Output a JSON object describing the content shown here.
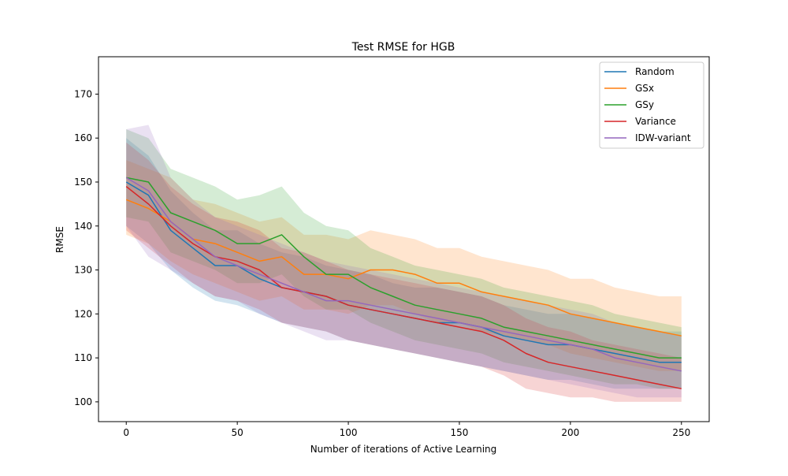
{
  "chart_data": {
    "type": "line",
    "title": "Test RMSE for HGB",
    "xlabel": "Number of iterations of Active Learning",
    "ylabel": "RMSE",
    "xlim": [
      -12.5,
      262.5
    ],
    "ylim": [
      95.5,
      178.5
    ],
    "xticks": [
      0,
      50,
      100,
      150,
      200,
      250
    ],
    "yticks": [
      100,
      110,
      120,
      130,
      140,
      150,
      160,
      170
    ],
    "grid": false,
    "legend": "top-right",
    "band": "shaded min-max range around each series",
    "series": [
      {
        "name": "Random",
        "color": "#1f77b4",
        "x": [
          0,
          10,
          20,
          30,
          40,
          50,
          60,
          70,
          80,
          90,
          100,
          110,
          120,
          130,
          140,
          150,
          160,
          170,
          180,
          190,
          200,
          210,
          220,
          230,
          240,
          250
        ],
        "y": [
          150,
          147,
          139,
          135,
          131,
          131,
          128,
          126,
          125,
          124,
          122,
          121,
          120,
          119,
          118,
          118,
          117,
          115,
          114,
          113,
          113,
          112,
          111,
          110,
          109,
          109
        ],
        "lower": [
          140,
          136,
          130,
          126,
          123,
          122,
          120,
          118,
          117,
          116,
          114,
          113,
          112,
          111,
          110,
          109,
          108,
          107,
          106,
          105,
          105,
          104,
          103,
          103,
          103,
          103
        ],
        "upper": [
          160,
          156,
          148,
          143,
          139,
          139,
          136,
          134,
          133,
          131,
          130,
          129,
          127,
          126,
          126,
          125,
          124,
          122,
          121,
          120,
          120,
          119,
          118,
          117,
          116,
          116
        ]
      },
      {
        "name": "GSx",
        "color": "#ff7f0e",
        "x": [
          0,
          10,
          20,
          30,
          40,
          50,
          60,
          70,
          80,
          90,
          100,
          110,
          120,
          130,
          140,
          150,
          160,
          170,
          180,
          190,
          200,
          210,
          220,
          230,
          240,
          250
        ],
        "y": [
          146,
          144,
          141,
          137,
          136,
          134,
          132,
          133,
          129,
          129,
          128,
          130,
          130,
          129,
          127,
          127,
          125,
          124,
          123,
          122,
          120,
          119,
          118,
          117,
          116,
          115
        ],
        "lower": [
          138,
          136,
          132,
          129,
          127,
          125,
          123,
          124,
          121,
          121,
          120,
          122,
          122,
          120,
          118,
          118,
          116,
          115,
          114,
          113,
          111,
          110,
          109,
          108,
          107,
          107
        ],
        "upper": [
          155,
          153,
          151,
          146,
          145,
          143,
          141,
          142,
          138,
          138,
          137,
          139,
          138,
          137,
          135,
          135,
          133,
          132,
          131,
          130,
          128,
          128,
          126,
          125,
          124,
          124
        ]
      },
      {
        "name": "GSy",
        "color": "#2ca02c",
        "x": [
          0,
          10,
          20,
          30,
          40,
          50,
          60,
          70,
          80,
          90,
          100,
          110,
          120,
          130,
          140,
          150,
          160,
          170,
          180,
          190,
          200,
          210,
          220,
          230,
          240,
          250
        ],
        "y": [
          151,
          150,
          143,
          141,
          139,
          136,
          136,
          138,
          133,
          129,
          129,
          126,
          124,
          122,
          121,
          120,
          119,
          117,
          116,
          115,
          114,
          113,
          112,
          111,
          110,
          110
        ],
        "lower": [
          142,
          141,
          134,
          132,
          130,
          127,
          127,
          129,
          124,
          121,
          121,
          118,
          116,
          114,
          113,
          112,
          111,
          109,
          108,
          107,
          106,
          105,
          104,
          104,
          103,
          103
        ],
        "upper": [
          162,
          160,
          153,
          151,
          149,
          146,
          147,
          149,
          143,
          140,
          139,
          135,
          133,
          131,
          130,
          129,
          128,
          126,
          125,
          124,
          123,
          122,
          120,
          119,
          118,
          117
        ]
      },
      {
        "name": "Variance",
        "color": "#d62728",
        "x": [
          0,
          10,
          20,
          30,
          40,
          50,
          60,
          70,
          80,
          90,
          100,
          110,
          120,
          130,
          140,
          150,
          160,
          170,
          180,
          190,
          200,
          210,
          220,
          230,
          240,
          250
        ],
        "y": [
          149,
          145,
          140,
          136,
          133,
          132,
          130,
          126,
          125,
          124,
          122,
          121,
          120,
          119,
          118,
          117,
          116,
          114,
          111,
          109,
          108,
          107,
          106,
          105,
          104,
          103
        ],
        "lower": [
          139,
          135,
          131,
          127,
          124,
          123,
          121,
          118,
          117,
          116,
          114,
          113,
          112,
          111,
          110,
          109,
          108,
          106,
          103,
          102,
          101,
          101,
          100,
          100,
          100,
          100
        ],
        "upper": [
          159,
          155,
          149,
          145,
          142,
          141,
          139,
          135,
          134,
          132,
          130,
          129,
          128,
          127,
          126,
          125,
          124,
          122,
          119,
          117,
          116,
          114,
          113,
          112,
          111,
          110
        ]
      },
      {
        "name": "IDW-variant",
        "color": "#9467bd",
        "x": [
          0,
          10,
          20,
          30,
          40,
          50,
          60,
          70,
          80,
          90,
          100,
          110,
          120,
          130,
          140,
          150,
          160,
          170,
          180,
          190,
          200,
          210,
          220,
          230,
          240,
          250
        ],
        "y": [
          151,
          148,
          141,
          137,
          133,
          131,
          129,
          127,
          125,
          123,
          123,
          122,
          121,
          120,
          119,
          118,
          117,
          116,
          115,
          114,
          113,
          112,
          110,
          109,
          108,
          107
        ],
        "lower": [
          140,
          133,
          130,
          127,
          124,
          123,
          120,
          118,
          116,
          114,
          114,
          113,
          112,
          111,
          110,
          109,
          108,
          107,
          106,
          105,
          104,
          103,
          102,
          101,
          101,
          101
        ],
        "upper": [
          162,
          163,
          151,
          146,
          142,
          140,
          138,
          136,
          134,
          132,
          131,
          130,
          129,
          128,
          127,
          126,
          125,
          124,
          123,
          122,
          121,
          120,
          118,
          117,
          116,
          115
        ]
      }
    ]
  }
}
